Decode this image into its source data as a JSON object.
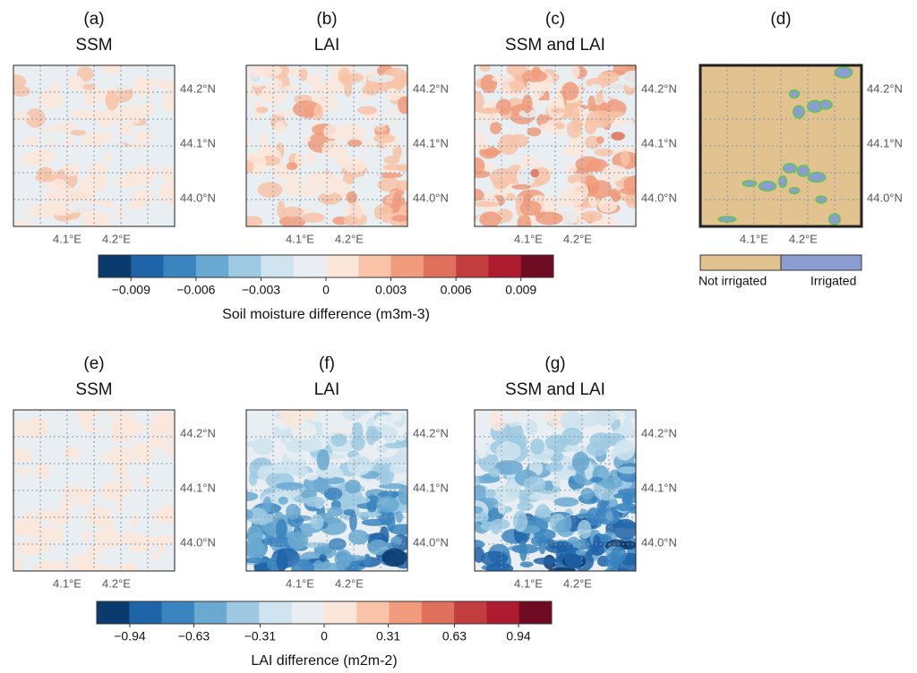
{
  "panels": [
    {
      "label": "(a)",
      "title": "SSM",
      "lon_ticks": [
        "4.1°E",
        "4.2°E"
      ],
      "lat_ticks": [
        "44.2°N",
        "44.1°N",
        "44.0°N"
      ]
    },
    {
      "label": "(b)",
      "title": "LAI",
      "lon_ticks": [
        "4.1°E",
        "4.2°E"
      ],
      "lat_ticks": [
        "44.2°N",
        "44.1°N",
        "44.0°N"
      ]
    },
    {
      "label": "(c)",
      "title": "SSM and LAI",
      "lon_ticks": [
        "4.1°E",
        "4.2°E"
      ],
      "lat_ticks": [
        "44.2°N",
        "44.1°N",
        "44.0°N"
      ]
    },
    {
      "label": "(d)",
      "lon_ticks": [
        "4.1°E",
        "4.2°E"
      ],
      "lat_ticks": [
        "44.2°N",
        "44.1°N",
        "44.0°N"
      ]
    },
    {
      "label": "(e)",
      "title": "SSM",
      "lon_ticks": [
        "4.1°E",
        "4.2°E"
      ],
      "lat_ticks": [
        "44.2°N",
        "44.1°N",
        "44.0°N"
      ]
    },
    {
      "label": "(f)",
      "title": "LAI",
      "lon_ticks": [
        "4.1°E",
        "4.2°E"
      ],
      "lat_ticks": [
        "44.2°N",
        "44.1°N",
        "44.0°N"
      ]
    },
    {
      "label": "(g)",
      "title": "SSM and LAI",
      "lon_ticks": [
        "4.1°E",
        "4.2°E"
      ],
      "lat_ticks": [
        "44.2°N",
        "44.1°N",
        "44.0°N"
      ]
    }
  ],
  "colorbars": [
    {
      "title": "Soil moisture difference (m3m-3)",
      "range": [
        -0.0105,
        0.0105
      ],
      "colors": [
        "#0b3a6e",
        "#1f63a8",
        "#3a85bf",
        "#6aa9d1",
        "#9dcae2",
        "#cfe4ef",
        "#e8eef2",
        "#fbe6da",
        "#f8c3a7",
        "#f09b7b",
        "#df705b",
        "#c23e3e",
        "#ad1c2e",
        "#6f0b22"
      ],
      "ticks": [
        {
          "value": -0.009,
          "label": "−0.009"
        },
        {
          "value": -0.006,
          "label": "−0.006"
        },
        {
          "value": -0.003,
          "label": "−0.003"
        },
        0,
        0.003,
        0.006,
        0.009
      ]
    },
    {
      "title": "LAI difference (m2m-2)",
      "range": [
        -1.1,
        1.1
      ],
      "colors": [
        "#0b3a6e",
        "#1f63a8",
        "#3a85bf",
        "#6aa9d1",
        "#9dcae2",
        "#cfe4ef",
        "#e8eef2",
        "#fbe6da",
        "#f8c3a7",
        "#f09b7b",
        "#df705b",
        "#c23e3e",
        "#ad1c2e",
        "#6f0b22"
      ],
      "ticks": [
        {
          "value": -0.94,
          "label": "−0.94"
        },
        {
          "value": -0.63,
          "label": "−0.63"
        },
        {
          "value": -0.31,
          "label": "−0.31"
        },
        0,
        0.31,
        0.63,
        0.94
      ]
    }
  ],
  "irrigation_legend": {
    "labels": [
      "Not irrigated",
      "Irrigated"
    ],
    "colors": [
      "#e2c28e",
      "#8c9ed1"
    ]
  }
}
